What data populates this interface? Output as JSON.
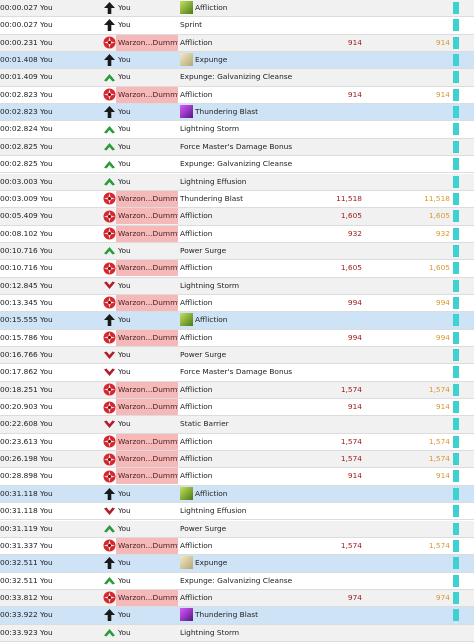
{
  "log": {
    "rows": [
      {
        "time": "00:00.027",
        "source": "You",
        "icon": "arrow-up-icon",
        "target": "You",
        "target_hl": false,
        "ability_icon": "affliction-icon",
        "ability": "Affliction",
        "amount": "",
        "effective": "",
        "bar": true,
        "selected": false
      },
      {
        "time": "00:00.027",
        "source": "You",
        "icon": "arrow-up-icon",
        "target": "You",
        "target_hl": false,
        "ability_icon": "",
        "ability": "Sprint",
        "amount": "",
        "effective": "",
        "bar": true,
        "selected": false
      },
      {
        "time": "00:00.231",
        "source": "You",
        "icon": "damage-burst-icon",
        "target": "Warzon...Dummy",
        "target_hl": true,
        "ability_icon": "",
        "ability": "Affliction",
        "amount": "914",
        "effective": "914",
        "bar": true,
        "selected": false
      },
      {
        "time": "00:01.408",
        "source": "You",
        "icon": "arrow-up-icon",
        "target": "You",
        "target_hl": false,
        "ability_icon": "expunge-icon",
        "ability": "Expunge",
        "amount": "",
        "effective": "",
        "bar": true,
        "selected": true
      },
      {
        "time": "00:01.409",
        "source": "You",
        "icon": "heal-chevron-icon",
        "target": "You",
        "target_hl": false,
        "ability_icon": "",
        "ability": "Expunge: Galvanizing Cleanse",
        "amount": "",
        "effective": "",
        "bar": true,
        "selected": false
      },
      {
        "time": "00:02.823",
        "source": "You",
        "icon": "damage-burst-icon",
        "target": "Warzon...Dummy",
        "target_hl": true,
        "ability_icon": "",
        "ability": "Affliction",
        "amount": "914",
        "effective": "914",
        "bar": true,
        "selected": false
      },
      {
        "time": "00:02.823",
        "source": "You",
        "icon": "arrow-up-icon",
        "target": "You",
        "target_hl": false,
        "ability_icon": "thundering-blast-icon",
        "ability": "Thundering Blast",
        "amount": "",
        "effective": "",
        "bar": true,
        "selected": true
      },
      {
        "time": "00:02.824",
        "source": "You",
        "icon": "heal-chevron-icon",
        "target": "You",
        "target_hl": false,
        "ability_icon": "",
        "ability": "Lightning Storm",
        "amount": "",
        "effective": "",
        "bar": true,
        "selected": false
      },
      {
        "time": "00:02.825",
        "source": "You",
        "icon": "heal-chevron-icon",
        "target": "You",
        "target_hl": false,
        "ability_icon": "",
        "ability": "Force Master's Damage Bonus",
        "amount": "",
        "effective": "",
        "bar": true,
        "selected": false
      },
      {
        "time": "00:02.825",
        "source": "You",
        "icon": "heal-chevron-icon",
        "target": "You",
        "target_hl": false,
        "ability_icon": "",
        "ability": "Expunge: Galvanizing Cleanse",
        "amount": "",
        "effective": "",
        "bar": true,
        "selected": false
      },
      {
        "time": "00:03.003",
        "source": "You",
        "icon": "heal-chevron-icon",
        "target": "You",
        "target_hl": false,
        "ability_icon": "",
        "ability": "Lightning Effusion",
        "amount": "",
        "effective": "",
        "bar": true,
        "selected": false
      },
      {
        "time": "00:03.009",
        "source": "You",
        "icon": "damage-burst-icon",
        "target": "Warzon...Dummy",
        "target_hl": true,
        "ability_icon": "",
        "ability": "Thundering Blast",
        "amount": "11,518",
        "effective": "11,518",
        "bar": true,
        "selected": false
      },
      {
        "time": "00:05.409",
        "source": "You",
        "icon": "damage-burst-icon",
        "target": "Warzon...Dummy",
        "target_hl": true,
        "ability_icon": "",
        "ability": "Affliction",
        "amount": "1,605",
        "effective": "1,605",
        "bar": true,
        "selected": false
      },
      {
        "time": "00:08.102",
        "source": "You",
        "icon": "damage-burst-icon",
        "target": "Warzon...Dummy",
        "target_hl": true,
        "ability_icon": "",
        "ability": "Affliction",
        "amount": "932",
        "effective": "932",
        "bar": true,
        "selected": false
      },
      {
        "time": "00:10.716",
        "source": "You",
        "icon": "heal-chevron-icon",
        "target": "You",
        "target_hl": false,
        "ability_icon": "",
        "ability": "Power Surge",
        "amount": "",
        "effective": "",
        "bar": true,
        "selected": false
      },
      {
        "time": "00:10.716",
        "source": "You",
        "icon": "damage-burst-icon",
        "target": "Warzon...Dummy",
        "target_hl": true,
        "ability_icon": "",
        "ability": "Affliction",
        "amount": "1,605",
        "effective": "1,605",
        "bar": true,
        "selected": false
      },
      {
        "time": "00:12.845",
        "source": "You",
        "icon": "remove-chevron-icon",
        "target": "You",
        "target_hl": false,
        "ability_icon": "",
        "ability": "Lightning Storm",
        "amount": "",
        "effective": "",
        "bar": true,
        "selected": false
      },
      {
        "time": "00:13.345",
        "source": "You",
        "icon": "damage-burst-icon",
        "target": "Warzon...Dummy",
        "target_hl": true,
        "ability_icon": "",
        "ability": "Affliction",
        "amount": "994",
        "effective": "994",
        "bar": true,
        "selected": false
      },
      {
        "time": "00:15.555",
        "source": "You",
        "icon": "arrow-up-icon",
        "target": "You",
        "target_hl": false,
        "ability_icon": "affliction-icon",
        "ability": "Affliction",
        "amount": "",
        "effective": "",
        "bar": true,
        "selected": true
      },
      {
        "time": "00:15.786",
        "source": "You",
        "icon": "damage-burst-icon",
        "target": "Warzon...Dummy",
        "target_hl": true,
        "ability_icon": "",
        "ability": "Affliction",
        "amount": "994",
        "effective": "994",
        "bar": true,
        "selected": false
      },
      {
        "time": "00:16.766",
        "source": "You",
        "icon": "remove-chevron-icon",
        "target": "You",
        "target_hl": false,
        "ability_icon": "",
        "ability": "Power Surge",
        "amount": "",
        "effective": "",
        "bar": true,
        "selected": false
      },
      {
        "time": "00:17.862",
        "source": "You",
        "icon": "remove-chevron-icon",
        "target": "You",
        "target_hl": false,
        "ability_icon": "",
        "ability": "Force Master's Damage Bonus",
        "amount": "",
        "effective": "",
        "bar": true,
        "selected": false
      },
      {
        "time": "00:18.251",
        "source": "You",
        "icon": "damage-burst-icon",
        "target": "Warzon...Dummy",
        "target_hl": true,
        "ability_icon": "",
        "ability": "Affliction",
        "amount": "1,574",
        "effective": "1,574",
        "bar": true,
        "selected": false
      },
      {
        "time": "00:20.903",
        "source": "You",
        "icon": "damage-burst-icon",
        "target": "Warzon...Dummy",
        "target_hl": true,
        "ability_icon": "",
        "ability": "Affliction",
        "amount": "914",
        "effective": "914",
        "bar": true,
        "selected": false
      },
      {
        "time": "00:22.608",
        "source": "You",
        "icon": "remove-chevron-icon",
        "target": "You",
        "target_hl": false,
        "ability_icon": "",
        "ability": "Static Barrier",
        "amount": "",
        "effective": "",
        "bar": true,
        "selected": false
      },
      {
        "time": "00:23.613",
        "source": "You",
        "icon": "damage-burst-icon",
        "target": "Warzon...Dummy",
        "target_hl": true,
        "ability_icon": "",
        "ability": "Affliction",
        "amount": "1,574",
        "effective": "1,574",
        "bar": true,
        "selected": false
      },
      {
        "time": "00:26.198",
        "source": "You",
        "icon": "damage-burst-icon",
        "target": "Warzon...Dummy",
        "target_hl": true,
        "ability_icon": "",
        "ability": "Affliction",
        "amount": "1,574",
        "effective": "1,574",
        "bar": true,
        "selected": false
      },
      {
        "time": "00:28.898",
        "source": "You",
        "icon": "damage-burst-icon",
        "target": "Warzon...Dummy",
        "target_hl": true,
        "ability_icon": "",
        "ability": "Affliction",
        "amount": "914",
        "effective": "914",
        "bar": true,
        "selected": false
      },
      {
        "time": "00:31.118",
        "source": "You",
        "icon": "arrow-up-icon",
        "target": "You",
        "target_hl": false,
        "ability_icon": "affliction-icon",
        "ability": "Affliction",
        "amount": "",
        "effective": "",
        "bar": true,
        "selected": true
      },
      {
        "time": "00:31.118",
        "source": "You",
        "icon": "remove-chevron-icon",
        "target": "You",
        "target_hl": false,
        "ability_icon": "",
        "ability": "Lightning Effusion",
        "amount": "",
        "effective": "",
        "bar": true,
        "selected": false
      },
      {
        "time": "00:31.119",
        "source": "You",
        "icon": "heal-chevron-icon",
        "target": "You",
        "target_hl": false,
        "ability_icon": "",
        "ability": "Power Surge",
        "amount": "",
        "effective": "",
        "bar": true,
        "selected": false
      },
      {
        "time": "00:31.337",
        "source": "You",
        "icon": "damage-burst-icon",
        "target": "Warzon...Dummy",
        "target_hl": true,
        "ability_icon": "",
        "ability": "Affliction",
        "amount": "1,574",
        "effective": "1,574",
        "bar": true,
        "selected": false
      },
      {
        "time": "00:32.511",
        "source": "You",
        "icon": "arrow-up-icon",
        "target": "You",
        "target_hl": false,
        "ability_icon": "expunge-icon",
        "ability": "Expunge",
        "amount": "",
        "effective": "",
        "bar": true,
        "selected": true
      },
      {
        "time": "00:32.511",
        "source": "You",
        "icon": "heal-chevron-icon",
        "target": "You",
        "target_hl": false,
        "ability_icon": "",
        "ability": "Expunge: Galvanizing Cleanse",
        "amount": "",
        "effective": "",
        "bar": true,
        "selected": false
      },
      {
        "time": "00:33.812",
        "source": "You",
        "icon": "damage-burst-icon",
        "target": "Warzon...Dummy",
        "target_hl": true,
        "ability_icon": "",
        "ability": "Affliction",
        "amount": "974",
        "effective": "974",
        "bar": true,
        "selected": false
      },
      {
        "time": "00:33.922",
        "source": "You",
        "icon": "arrow-up-icon",
        "target": "You",
        "target_hl": false,
        "ability_icon": "thundering-blast-icon",
        "ability": "Thundering Blast",
        "amount": "",
        "effective": "",
        "bar": true,
        "selected": true
      },
      {
        "time": "00:33.923",
        "source": "You",
        "icon": "heal-chevron-icon",
        "target": "You",
        "target_hl": false,
        "ability_icon": "",
        "ability": "Lightning Storm",
        "amount": "",
        "effective": "",
        "bar": false,
        "selected": false
      }
    ]
  }
}
